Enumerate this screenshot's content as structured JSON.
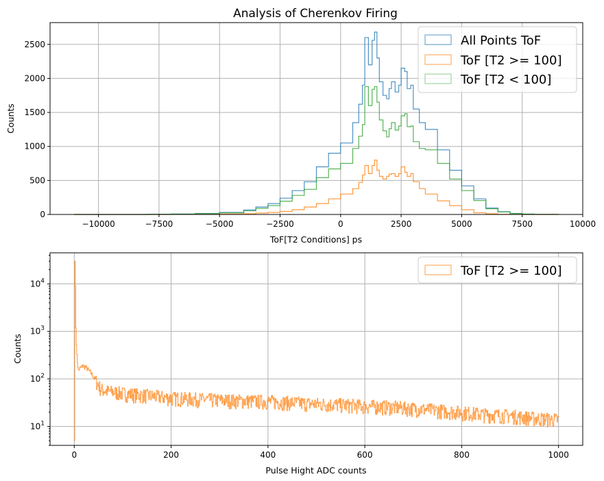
{
  "chart_data": [
    {
      "type": "histogram",
      "title": "Analysis of Cherenkov Firing",
      "xlabel": "ToF[T2 Conditions] ps",
      "ylabel": "Counts",
      "xlim": [
        -12000,
        10000
      ],
      "ylim": [
        0,
        2820
      ],
      "x_ticks": [
        -10000,
        -7500,
        -5000,
        -2500,
        0,
        2500,
        5000,
        7500,
        10000
      ],
      "x_tick_labels": [
        "−10000",
        "−7500",
        "−5000",
        "−2500",
        "0",
        "2500",
        "5000",
        "7500",
        "10000"
      ],
      "y_ticks": [
        0,
        500,
        1000,
        1500,
        2000,
        2500
      ],
      "y_tick_labels": [
        "0",
        "500",
        "1000",
        "1500",
        "2000",
        "2500"
      ],
      "grid": true,
      "legend": "top-right",
      "series": [
        {
          "name": "All Points ToF",
          "color": "#1f77b4",
          "x": [
            -11000,
            -10000,
            -9000,
            -8000,
            -7000,
            -6000,
            -5000,
            -4000,
            -3500,
            -3000,
            -2500,
            -2000,
            -1500,
            -1000,
            -500,
            0,
            500,
            750,
            900,
            1000,
            1150,
            1300,
            1400,
            1500,
            1600,
            1750,
            1900,
            2000,
            2100,
            2250,
            2400,
            2500,
            2650,
            2750,
            2900,
            3000,
            3250,
            3500,
            4000,
            4500,
            5000,
            5500,
            6000,
            6500,
            7000,
            7500,
            8000,
            8500,
            9000
          ],
          "values": [
            0,
            0,
            0,
            3,
            6,
            15,
            30,
            65,
            110,
            160,
            240,
            350,
            480,
            700,
            900,
            1050,
            1350,
            1620,
            1900,
            2600,
            2200,
            2560,
            2680,
            2300,
            1950,
            1750,
            1700,
            1850,
            1950,
            1800,
            1900,
            2150,
            2100,
            1850,
            1900,
            1550,
            1350,
            1250,
            950,
            650,
            420,
            230,
            95,
            40,
            15,
            5,
            2,
            1,
            0
          ]
        },
        {
          "name": "ToF [T2 >= 100]",
          "color": "#ff7f0e",
          "x": [
            -11000,
            -10000,
            -9000,
            -8000,
            -7000,
            -6000,
            -5000,
            -4000,
            -3500,
            -3000,
            -2500,
            -2000,
            -1500,
            -1000,
            -500,
            0,
            500,
            750,
            900,
            1000,
            1150,
            1300,
            1400,
            1500,
            1600,
            1750,
            1900,
            2000,
            2100,
            2250,
            2400,
            2500,
            2650,
            2750,
            2900,
            3000,
            3250,
            3500,
            4000,
            4500,
            5000,
            5500,
            6000,
            6500,
            7000,
            7500,
            8000,
            8500,
            9000
          ],
          "values": [
            0,
            0,
            0,
            0,
            1,
            3,
            6,
            12,
            20,
            30,
            45,
            70,
            110,
            160,
            230,
            300,
            380,
            470,
            580,
            720,
            600,
            720,
            800,
            650,
            560,
            520,
            560,
            590,
            600,
            560,
            600,
            700,
            620,
            560,
            600,
            480,
            380,
            300,
            200,
            130,
            70,
            25,
            10,
            3,
            1,
            0,
            0,
            0,
            0
          ]
        },
        {
          "name": "ToF [T2 < 100]",
          "color": "#2ca02c",
          "x": [
            -11000,
            -10000,
            -9000,
            -8000,
            -7000,
            -6000,
            -5000,
            -4000,
            -3500,
            -3000,
            -2500,
            -2000,
            -1500,
            -1000,
            -500,
            0,
            500,
            750,
            900,
            1000,
            1150,
            1300,
            1400,
            1500,
            1600,
            1750,
            1900,
            2000,
            2100,
            2250,
            2400,
            2500,
            2650,
            2750,
            2900,
            3000,
            3250,
            3500,
            4000,
            4500,
            5000,
            5500,
            6000,
            6500,
            7000,
            7500,
            8000,
            8500,
            9000
          ],
          "values": [
            0,
            0,
            0,
            3,
            5,
            12,
            24,
            53,
            90,
            130,
            195,
            280,
            370,
            540,
            670,
            750,
            970,
            1150,
            1320,
            1880,
            1600,
            1840,
            1880,
            1650,
            1390,
            1230,
            1140,
            1260,
            1350,
            1240,
            1300,
            1450,
            1480,
            1290,
            1300,
            1070,
            970,
            950,
            750,
            520,
            350,
            205,
            85,
            37,
            14,
            5,
            2,
            1,
            0
          ]
        }
      ]
    },
    {
      "type": "histogram",
      "xlabel": "Pulse Hight ADC counts",
      "ylabel": "Counts",
      "xlim": [
        -50,
        1050
      ],
      "ylim": [
        4,
        45000
      ],
      "yscale": "log",
      "x_ticks": [
        0,
        200,
        400,
        600,
        800,
        1000
      ],
      "x_tick_labels": [
        "0",
        "200",
        "400",
        "600",
        "800",
        "1000"
      ],
      "y_ticks": [
        10,
        100,
        1000,
        10000
      ],
      "grid": true,
      "legend": "top-right",
      "series": [
        {
          "name": "ToF [T2 >= 100]",
          "color": "#ff7f0e",
          "x": [
            0,
            1,
            2,
            3,
            5,
            8,
            12,
            18,
            25,
            35,
            45,
            55,
            70,
            100,
            150,
            200,
            250,
            300,
            350,
            400,
            450,
            500,
            550,
            600,
            650,
            700,
            750,
            800,
            850,
            900,
            950,
            1000
          ],
          "values": [
            5,
            30000,
            9000,
            1200,
            300,
            150,
            170,
            190,
            170,
            130,
            90,
            60,
            55,
            50,
            45,
            40,
            38,
            36,
            35,
            34,
            32,
            30,
            29,
            27,
            26,
            24,
            22,
            20,
            18,
            17,
            15,
            14
          ]
        }
      ]
    }
  ]
}
